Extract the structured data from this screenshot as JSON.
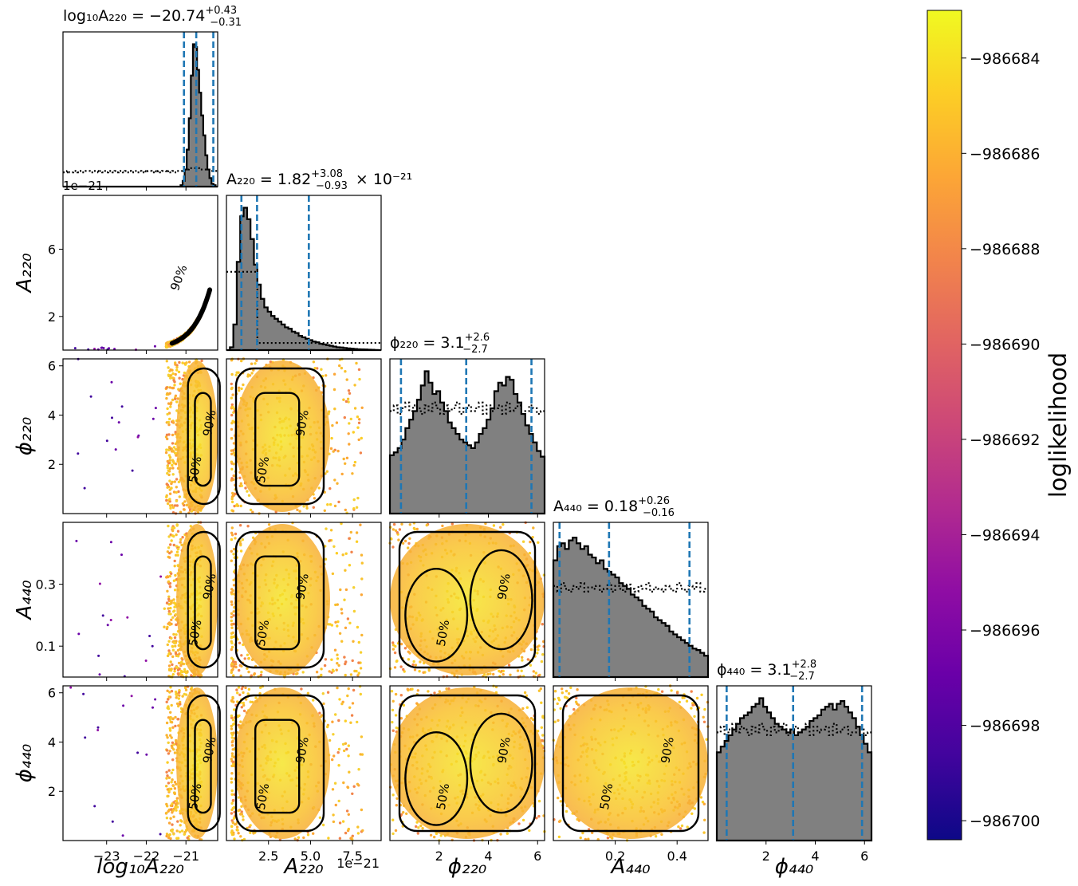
{
  "figure": {
    "colorbar": {
      "label": "loglikelihood",
      "min": -986700.4,
      "max": -986683.0,
      "colormap": "plasma",
      "ticks": [
        -986684,
        -986686,
        -986688,
        -986690,
        -986692,
        -986694,
        -986696,
        -986698,
        -986700
      ],
      "tick_labels": [
        "−986684",
        "−986686",
        "−986688",
        "−986690",
        "−986692",
        "−986694",
        "−986696",
        "−986698",
        "−986700"
      ]
    },
    "line_color": "#1f77b4",
    "hist_fill": "#808080"
  },
  "chart_data": {
    "type": "scatter",
    "parameters": [
      {
        "key": "log10A220",
        "axis_label": "log₁₀A₂₂₀",
        "title": "log₁₀A₂₂₀ = −20.74",
        "err_plus": "+0.43",
        "err_minus": "−0.31",
        "range": [
          -24.1,
          -20.2
        ],
        "ticks": [
          -23,
          -22,
          -21
        ],
        "tick_labels": [
          "−23",
          "−22",
          "−21"
        ],
        "quantiles": [
          -21.05,
          -20.74,
          -20.31
        ],
        "offset_text": "",
        "hist": [
          0,
          0,
          0,
          0,
          0,
          0,
          0,
          0,
          0,
          0,
          0,
          0,
          0,
          0,
          0,
          0,
          0,
          0,
          0,
          0,
          0,
          0,
          0,
          0,
          0,
          0,
          0,
          0,
          0,
          0,
          0,
          0,
          0,
          0,
          0,
          0,
          0,
          0,
          0,
          0,
          0,
          0,
          0,
          0,
          0,
          0,
          0,
          0,
          0,
          0,
          0,
          0,
          0,
          0,
          0,
          0,
          0,
          0.01,
          0.04,
          0.12,
          0.26,
          0.48,
          0.78,
          1.0,
          0.98,
          0.82,
          0.66,
          0.5,
          0.36,
          0.22,
          0.12,
          0.06,
          0.02,
          0.01,
          0
        ],
        "prior": [
          0.1,
          0.1,
          0.11,
          0.1,
          0.1,
          0.11,
          0.11,
          0.1,
          0.11,
          0.1,
          0.1,
          0.11,
          0.11,
          0.1,
          0.1,
          0.11,
          0.11,
          0.1,
          0.11,
          0.1,
          0.11,
          0.1,
          0.11,
          0.11,
          0.1,
          0.11,
          0.1,
          0.11,
          0.11,
          0.1,
          0.11,
          0.1,
          0.11,
          0.1,
          0.11,
          0.11,
          0.1,
          0.11,
          0.1,
          0.11,
          0.1,
          0.11,
          0.11,
          0.1,
          0.11,
          0.1,
          0.11,
          0.1,
          0.11,
          0.11,
          0.1,
          0.11,
          0.1,
          0.11,
          0.1,
          0.11,
          0.11,
          0.11,
          0.12,
          0.12,
          0.12,
          0.13,
          0.13,
          0.13,
          0.13,
          0.13,
          0.12,
          0.12,
          0.12,
          0.12,
          0.12,
          0.11,
          0.11,
          0.11,
          0.11
        ]
      },
      {
        "key": "A220",
        "axis_label": "A₂₂₀",
        "title": "A₂₂₀ = 1.82",
        "title_suffix": " × 10⁻²¹",
        "err_plus": "+3.08",
        "err_minus": "−0.93",
        "range": [
          0,
          9.2
        ],
        "ticks": [
          2.5,
          5.0,
          7.5
        ],
        "tick_labels": [
          "2.5",
          "5.0",
          "7.5"
        ],
        "left_ticks": [
          2,
          6
        ],
        "left_tick_labels": [
          "2",
          "6"
        ],
        "quantiles": [
          0.89,
          1.82,
          4.9
        ],
        "offset_text": "1e−21",
        "hist": [
          0,
          0.02,
          0.18,
          0.62,
          0.94,
          1.0,
          0.92,
          0.78,
          0.6,
          0.46,
          0.36,
          0.3,
          0.27,
          0.24,
          0.22,
          0.2,
          0.18,
          0.16,
          0.15,
          0.13,
          0.12,
          0.1,
          0.09,
          0.08,
          0.07,
          0.06,
          0.055,
          0.045,
          0.04,
          0.035,
          0.03,
          0.025,
          0.02,
          0.018,
          0.015,
          0.012,
          0.01,
          0.008,
          0.006,
          0.005,
          0.004,
          0.003,
          0.002,
          0.001,
          0
        ],
        "prior": [
          0.55,
          0.55,
          0.55,
          0.55,
          0.55,
          0.55,
          0.55,
          0.55,
          0.55,
          0.05,
          0.05,
          0.05,
          0.05,
          0.05,
          0.05,
          0.05,
          0.05,
          0.05,
          0.05,
          0.05,
          0.05,
          0.05,
          0.05,
          0.05,
          0.05,
          0.05,
          0.05,
          0.05,
          0.05,
          0.05,
          0.05,
          0.05,
          0.05,
          0.05,
          0.05,
          0.05,
          0.05,
          0.05,
          0.05,
          0.05,
          0.05,
          0.05,
          0.05,
          0.05,
          0.05
        ]
      },
      {
        "key": "phi220",
        "axis_label": "ϕ₂₂₀",
        "title": "ϕ₂₂₀ = 3.1",
        "err_plus": "+2.6",
        "err_minus": "−2.7",
        "range": [
          0,
          6.283
        ],
        "ticks": [
          2,
          4,
          6
        ],
        "tick_labels": [
          "2",
          "4",
          "6"
        ],
        "left_ticks": [
          2,
          4,
          6
        ],
        "left_tick_labels": [
          "2",
          "4",
          "6"
        ],
        "quantiles": [
          0.45,
          3.1,
          5.75
        ],
        "offset_text": "",
        "hist": [
          0.41,
          0.43,
          0.46,
          0.52,
          0.6,
          0.66,
          0.72,
          0.8,
          0.9,
          1.0,
          0.92,
          0.84,
          0.86,
          0.78,
          0.72,
          0.64,
          0.6,
          0.56,
          0.52,
          0.5,
          0.48,
          0.46,
          0.5,
          0.56,
          0.6,
          0.66,
          0.74,
          0.86,
          0.92,
          0.9,
          0.96,
          0.94,
          0.84,
          0.78,
          0.7,
          0.62,
          0.56,
          0.5,
          0.44,
          0.4
        ],
        "prior": [
          0.72,
          0.76,
          0.7,
          0.74,
          0.78,
          0.72,
          0.76,
          0.74,
          0.7,
          0.76,
          0.72,
          0.78,
          0.74,
          0.7,
          0.76,
          0.72,
          0.74,
          0.78,
          0.7,
          0.74,
          0.76,
          0.72,
          0.74,
          0.78,
          0.7,
          0.76,
          0.72,
          0.74,
          0.76,
          0.7,
          0.78,
          0.72,
          0.74,
          0.76,
          0.7,
          0.72,
          0.76,
          0.74,
          0.7,
          0.72
        ]
      },
      {
        "key": "A440",
        "axis_label": "A₄₄₀",
        "title": "A₄₄₀ = 0.18",
        "err_plus": "+0.26",
        "err_minus": "−0.16",
        "range": [
          0,
          0.5
        ],
        "ticks": [
          0.2,
          0.4
        ],
        "tick_labels": [
          "0.2",
          "0.4"
        ],
        "left_ticks": [
          0.1,
          0.3
        ],
        "left_tick_labels": [
          "0.1",
          "0.3"
        ],
        "quantiles": [
          0.02,
          0.18,
          0.44
        ],
        "offset_text": "",
        "hist": [
          0.82,
          0.92,
          0.94,
          0.9,
          0.96,
          0.98,
          0.94,
          0.9,
          0.92,
          0.86,
          0.84,
          0.8,
          0.82,
          0.76,
          0.74,
          0.72,
          0.7,
          0.66,
          0.64,
          0.62,
          0.58,
          0.56,
          0.54,
          0.5,
          0.48,
          0.46,
          0.42,
          0.4,
          0.38,
          0.36,
          0.32,
          0.3,
          0.28,
          0.26,
          0.24,
          0.22,
          0.2,
          0.19,
          0.17,
          0.15
        ],
        "prior": [
          0.64,
          0.6,
          0.66,
          0.62,
          0.6,
          0.64,
          0.62,
          0.66,
          0.6,
          0.63,
          0.62,
          0.64,
          0.6,
          0.62,
          0.66,
          0.6,
          0.64,
          0.62,
          0.6,
          0.65,
          0.62,
          0.6,
          0.64,
          0.62,
          0.66,
          0.6,
          0.63,
          0.62,
          0.6,
          0.64,
          0.62,
          0.6,
          0.66,
          0.62,
          0.6,
          0.64,
          0.62,
          0.66,
          0.6,
          0.62
        ]
      },
      {
        "key": "phi440",
        "axis_label": "ϕ₄₄₀",
        "title": "ϕ₄₄₀ = 3.1",
        "err_plus": "+2.8",
        "err_minus": "−2.7",
        "range": [
          0,
          6.283
        ],
        "ticks": [
          2,
          4,
          6
        ],
        "tick_labels": [
          "2",
          "4",
          "6"
        ],
        "left_ticks": [
          2,
          4,
          6
        ],
        "left_tick_labels": [
          "2",
          "4",
          "6"
        ],
        "quantiles": [
          0.4,
          3.1,
          5.9
        ],
        "offset_text": "",
        "hist": [
          0.62,
          0.66,
          0.7,
          0.74,
          0.78,
          0.82,
          0.86,
          0.88,
          0.9,
          0.94,
          0.96,
          1.0,
          0.94,
          0.9,
          0.86,
          0.82,
          0.8,
          0.78,
          0.76,
          0.78,
          0.74,
          0.76,
          0.78,
          0.8,
          0.84,
          0.86,
          0.88,
          0.92,
          0.94,
          0.96,
          0.92,
          0.96,
          0.98,
          0.94,
          0.9,
          0.86,
          0.8,
          0.74,
          0.68,
          0.62
        ],
        "prior": [
          0.76,
          0.8,
          0.74,
          0.78,
          0.82,
          0.76,
          0.8,
          0.78,
          0.74,
          0.8,
          0.76,
          0.82,
          0.78,
          0.74,
          0.8,
          0.76,
          0.78,
          0.82,
          0.74,
          0.78,
          0.8,
          0.76,
          0.78,
          0.82,
          0.74,
          0.8,
          0.76,
          0.78,
          0.8,
          0.74,
          0.82,
          0.76,
          0.78,
          0.8,
          0.74,
          0.76,
          0.8,
          0.78,
          0.74,
          0.76
        ]
      }
    ],
    "contour_labels": [
      "50%",
      "90%"
    ],
    "grid": false,
    "legend": "none"
  }
}
